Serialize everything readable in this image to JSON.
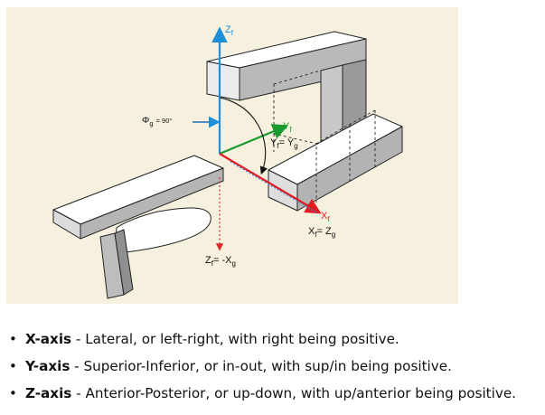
{
  "figure": {
    "background_color": "#f6f0de",
    "colors": {
      "z_axis": "#1e8fd8",
      "y_axis": "#1a9b2e",
      "x_axis": "#e21b22",
      "gravity_x": "#3b8fd6",
      "projection": "#d92a2a"
    },
    "labels": {
      "zf_main": "Z",
      "zf_sub": "f",
      "phi_sym": "Φ",
      "phi_sub": "g",
      "phi_val": "= 90°",
      "yf": "Y",
      "yf_sub": "f",
      "yf_eq_a": "Y",
      "yf_eq_a_sub": "f",
      "yf_eq_eq": "= Y",
      "yf_eq_b_sub": "g",
      "xf": "X",
      "xf_sub": "f",
      "xf_eq_a": "X",
      "xf_eq_a_sub": "f",
      "xf_eq_eq": "= Z",
      "xf_eq_b_sub": "g",
      "zf_eq_a": "Z",
      "zf_eq_a_sub": "f",
      "zf_eq_eq": "= -X",
      "zf_eq_b_sub": "g"
    }
  },
  "legend": [
    {
      "term": "X-axis",
      "text": " - Lateral, or left-right, with right being positive."
    },
    {
      "term": "Y-axis",
      "text": " - Superior-Inferior, or in-out, with sup/in being positive."
    },
    {
      "term": "Z-axis",
      "text": " - Anterior-Posterior, or up-down, with up/anterior being positive."
    }
  ],
  "bullet": "•"
}
